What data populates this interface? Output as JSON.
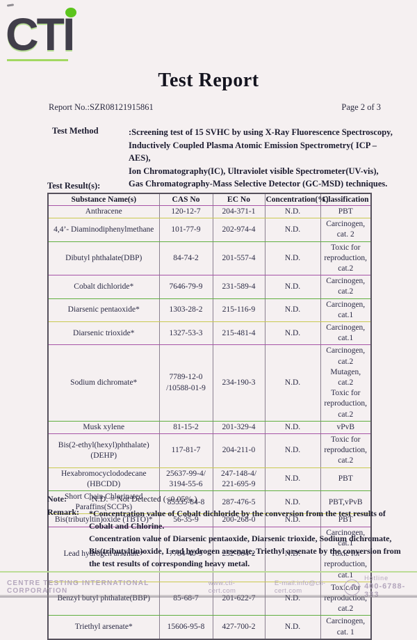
{
  "logo": {
    "text": "CTI"
  },
  "title": "Test Report",
  "meta": {
    "report_no": "Report No.:SZR08121915861",
    "page": "Page 2 of 3"
  },
  "test_method": {
    "label": "Test Method",
    "lines": [
      ":Screening test of 15 SVHC by using X-Ray Fluorescence Spectroscopy,",
      "Inductively Coupled Plasma Atomic Emission Spectrometry( ICP – AES),",
      "Ion Chromatography(IC), Ultraviolet visible Spectrometer(UV-vis),",
      "Gas Chromatography-Mass Selective Detector (GC-MSD) techniques."
    ]
  },
  "results_label": "Test Result(s):",
  "table": {
    "headers": [
      "Substance Name(s)",
      "CAS No",
      "EC No",
      "Concentration(%)",
      "Classification"
    ],
    "rows": [
      {
        "name": [
          "Anthracene"
        ],
        "cas": [
          "120-12-7"
        ],
        "ec": [
          "204-371-1"
        ],
        "conc": "N.D.",
        "classification": [
          "PBT"
        ]
      },
      {
        "name": [
          "4,4’- Diaminodiphenylmethane"
        ],
        "cas": [
          "101-77-9"
        ],
        "ec": [
          "202-974-4"
        ],
        "conc": "N.D.",
        "classification": [
          "Carcinogen, cat. 2"
        ]
      },
      {
        "name": [
          "Dibutyl phthalate(DBP)"
        ],
        "cas": [
          "84-74-2"
        ],
        "ec": [
          "201-557-4"
        ],
        "conc": "N.D.",
        "classification": [
          "Toxic for",
          "reproduction, cat.2"
        ]
      },
      {
        "name": [
          "Cobalt dichloride*"
        ],
        "cas": [
          "7646-79-9"
        ],
        "ec": [
          "231-589-4"
        ],
        "conc": "N.D.",
        "classification": [
          "Carcinogen, cat.2"
        ]
      },
      {
        "name": [
          "Diarsenic pentaoxide*"
        ],
        "cas": [
          "1303-28-2"
        ],
        "ec": [
          "215-116-9"
        ],
        "conc": "N.D.",
        "classification": [
          "Carcinogen, cat.1"
        ]
      },
      {
        "name": [
          "Diarsenic trioxide*"
        ],
        "cas": [
          "1327-53-3"
        ],
        "ec": [
          "215-481-4"
        ],
        "conc": "N.D.",
        "classification": [
          "Carcinogen, cat.1"
        ]
      },
      {
        "name": [
          "Sodium dichromate*"
        ],
        "cas": [
          "7789-12-0",
          "/10588-01-9"
        ],
        "ec": [
          "234-190-3"
        ],
        "conc": "N.D.",
        "classification": [
          "Carcinogen, cat.2",
          "Mutagen, cat.2",
          "Toxic for",
          "reproduction, cat.2"
        ]
      },
      {
        "name": [
          "Musk xylene"
        ],
        "cas": [
          "81-15-2"
        ],
        "ec": [
          "201-329-4"
        ],
        "conc": "N.D.",
        "classification": [
          "vPvB"
        ]
      },
      {
        "name": [
          "Bis(2-ethyl(hexyl)phthalate)",
          "(DEHP)"
        ],
        "cas": [
          "117-81-7"
        ],
        "ec": [
          "204-211-0"
        ],
        "conc": "N.D.",
        "classification": [
          "Toxic for",
          "reproduction, cat.2"
        ]
      },
      {
        "name": [
          "Hexabromocyclododecane",
          "(HBCDD)"
        ],
        "cas": [
          "25637-99-4/",
          "3194-55-6"
        ],
        "ec": [
          "247-148-4/",
          "221-695-9"
        ],
        "conc": "N.D.",
        "classification": [
          "PBT"
        ]
      },
      {
        "name": [
          "Short Chain Chlorinated",
          "Paraffins(SCCPs)"
        ],
        "cas": [
          "85535-84-8"
        ],
        "ec": [
          "287-476-5"
        ],
        "conc": "N.D.",
        "classification": [
          "PBT,vPvB"
        ]
      },
      {
        "name": [
          "Bis(tributyltin)oxide (TBTO)*"
        ],
        "cas": [
          "56-35-9"
        ],
        "ec": [
          "200-268-0"
        ],
        "conc": "N.D.",
        "classification": [
          "PBT"
        ]
      },
      {
        "name": [
          "Lead hydrogen arsenate*"
        ],
        "cas": [
          "7784-40-9"
        ],
        "ec": [
          "232-064-2"
        ],
        "conc": "N.D.",
        "classification": [
          "Carcinogen, cat.1",
          "Toxic for",
          "reproduction, cat.1"
        ]
      },
      {
        "name": [
          "Benzyl butyl phthalate(BBP)"
        ],
        "cas": [
          "85-68-7"
        ],
        "ec": [
          "201-622-7"
        ],
        "conc": "N.D.",
        "classification": [
          "Toxic for",
          "reproduction, cat.2"
        ]
      },
      {
        "name": [
          "Triethyl arsenate*"
        ],
        "cas": [
          "15606-95-8"
        ],
        "ec": [
          "427-700-2"
        ],
        "conc": "N.D.",
        "classification": [
          "Carcinogen, cat. 1"
        ]
      }
    ]
  },
  "note": {
    "label": "Note:",
    "text": "-N.D. = Not Detected (<0.05% )"
  },
  "remark": {
    "label": "Remark:",
    "lines": [
      "*Concentration value of Cobalt dichloride by the conversion from the test results of",
      "Cobalt and Chlorine.",
      "Concentration value of Diarsenic pentaoxide, Diarsenic trioxide, Sodium dichromate,",
      "Bis(tributyltin)oxide, Lead hydrogen arsenate, Triethyl arsenate by the conversion from",
      "the test results of corresponding heavy metal."
    ]
  },
  "footer": {
    "company": "CENTRE TESTING INTERNATIONAL CORPORATION",
    "website": "www.cti-cert.com",
    "email": "E-mail:info@cti-cert.com",
    "hotline_label": "Hotline",
    "hotline_number": "400-6788-333",
    "phone_icon": "phone-icon"
  },
  "colors": {
    "logo_green": "#5cc41c",
    "logo_ink": "#413e4a",
    "paper": "#f5f0f1",
    "table_outer_border": "#55505c",
    "table_vertical_border": "#8a8090",
    "header_underline": "#a653a6",
    "footer_text": "#b4a7bd",
    "footer_rule": "#bcdc96",
    "row_borders": [
      "#c9c94f",
      "#5fae3f",
      "#a653a6",
      "#5fae3f",
      "#c9c94f",
      "#a653a6",
      "#5fae3f",
      "#a653a6",
      "#c9c94f",
      "#5fae3f",
      "#c9c94f",
      "#a653a6",
      "#c9c94f",
      "#5fae3f",
      "#55505c"
    ]
  }
}
